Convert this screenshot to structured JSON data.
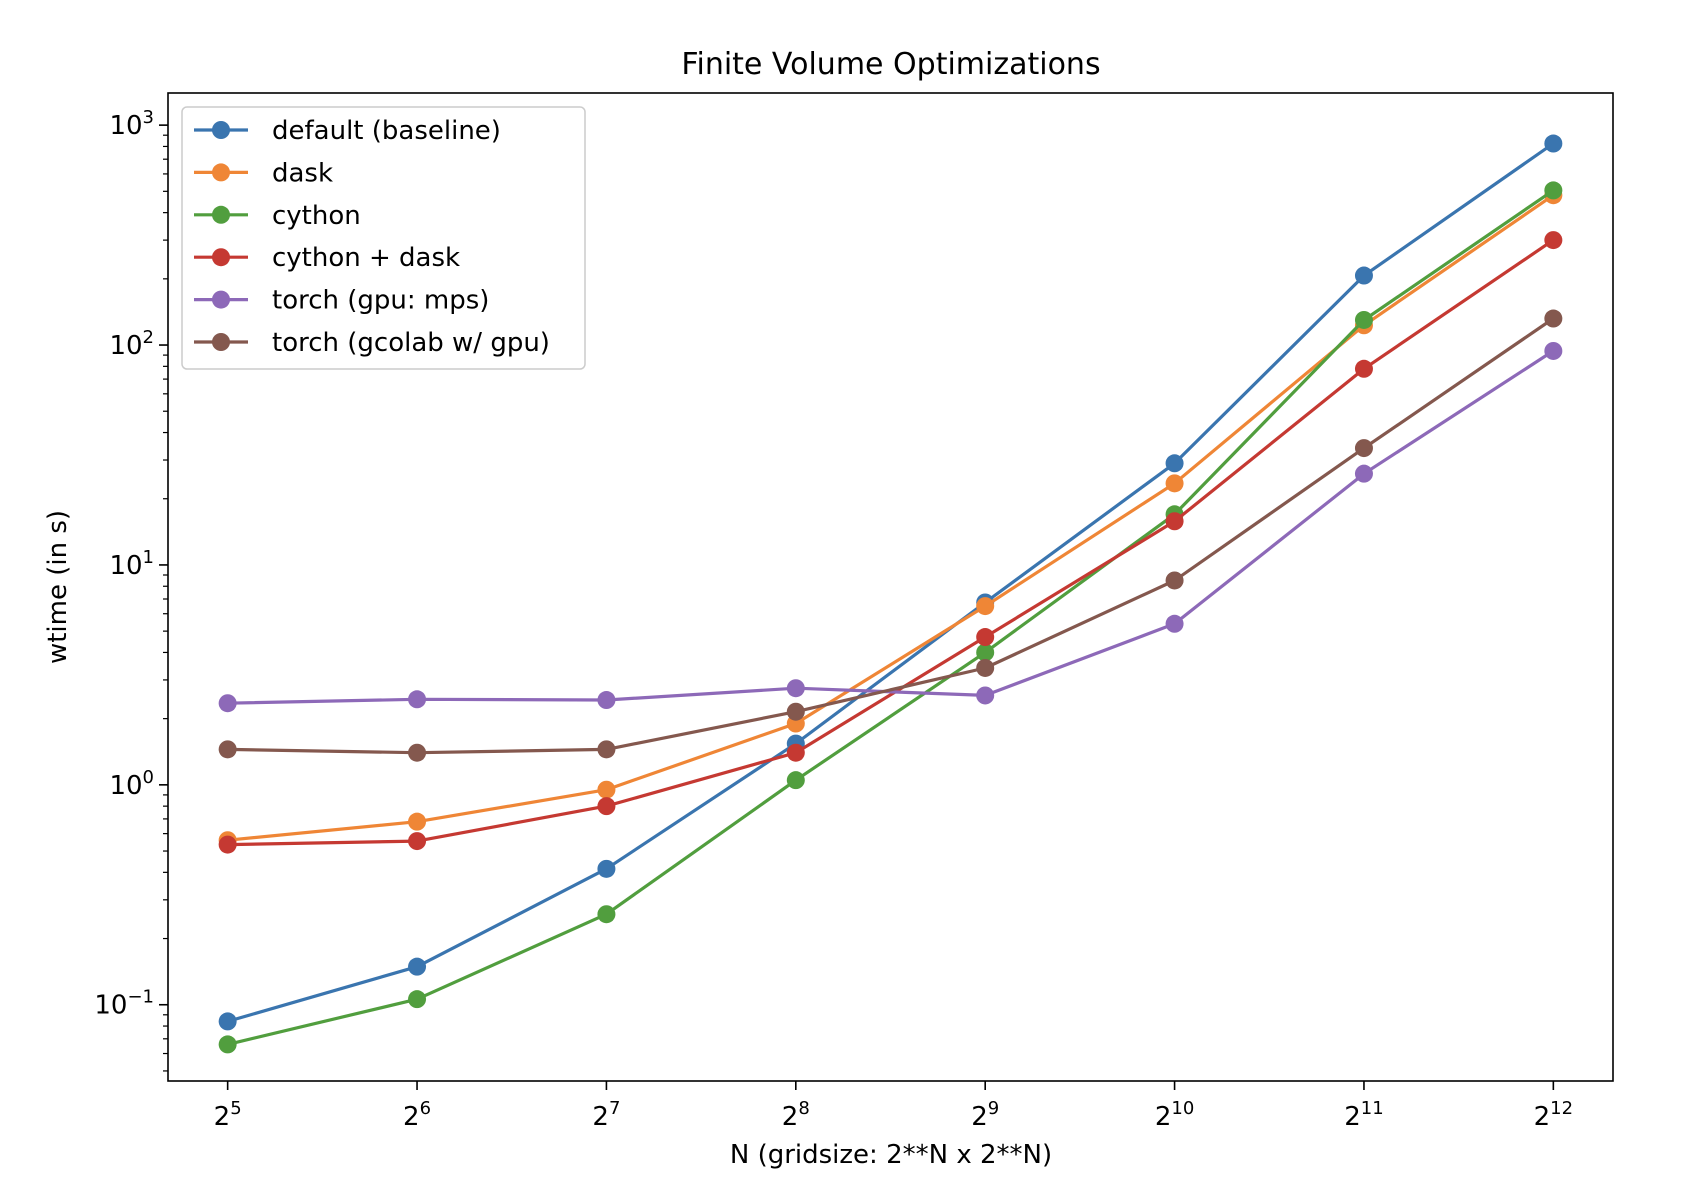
{
  "chart_data": {
    "type": "line",
    "title": "Finite Volume Optimizations",
    "xlabel": "N (gridsize: 2**N x 2**N)",
    "ylabel": "wtime (in s)",
    "yscale": "log",
    "xscale": "log2",
    "ylim": [
      0.045,
      1400
    ],
    "x": [
      32,
      64,
      128,
      256,
      512,
      1024,
      2048,
      4096
    ],
    "x_tick_base": "2",
    "x_tick_exponents": [
      "5",
      "6",
      "7",
      "8",
      "9",
      "10",
      "11",
      "12"
    ],
    "y_tick_base": "10",
    "y_tick_exponents": [
      "−1",
      "0",
      "1",
      "2",
      "3"
    ],
    "y_tick_values": [
      0.1,
      1,
      10,
      100,
      1000
    ],
    "grid": false,
    "legend_position": "upper-left",
    "series": [
      {
        "name": "default (baseline)",
        "color": "#3a75af",
        "values": [
          0.084,
          0.149,
          0.415,
          1.54,
          6.75,
          29.0,
          207,
          825
        ]
      },
      {
        "name": "dask",
        "color": "#ef8636",
        "values": [
          0.56,
          0.68,
          0.95,
          1.9,
          6.5,
          23.5,
          123,
          480
        ]
      },
      {
        "name": "cython",
        "color": "#519e3e",
        "values": [
          0.066,
          0.106,
          0.258,
          1.05,
          4.0,
          17.0,
          130,
          505
        ]
      },
      {
        "name": "cython + dask",
        "color": "#c53932",
        "values": [
          0.535,
          0.555,
          0.8,
          1.4,
          4.7,
          15.8,
          78,
          300
        ]
      },
      {
        "name": "torch (gpu: mps)",
        "color": "#8d69b8",
        "values": [
          2.35,
          2.45,
          2.43,
          2.75,
          2.55,
          5.4,
          26,
          94
        ]
      },
      {
        "name": "torch (gcolab w/ gpu)",
        "color": "#84584e",
        "values": [
          1.45,
          1.4,
          1.45,
          2.15,
          3.4,
          8.5,
          34,
          132
        ]
      }
    ]
  }
}
